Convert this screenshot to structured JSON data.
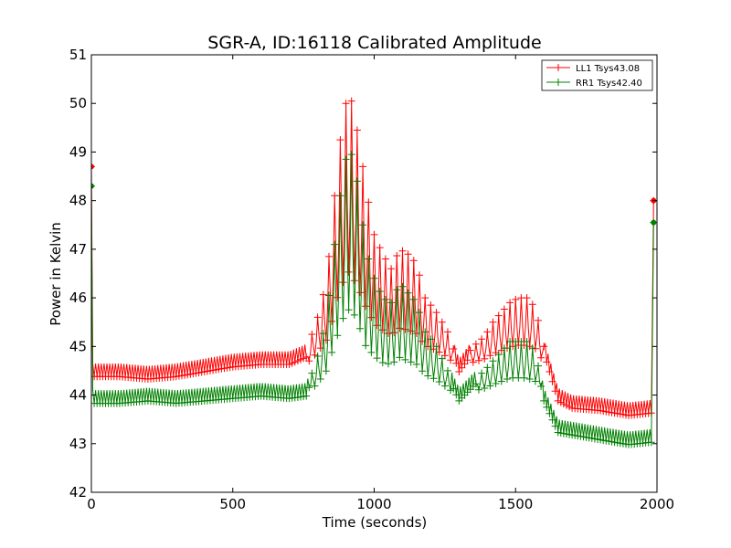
{
  "chart_data": {
    "type": "line",
    "title": "SGR-A, ID:16118 Calibrated Amplitude",
    "xlabel": "Time (seconds)",
    "ylabel": "Power in Kelvin",
    "xlim": [
      0,
      2000
    ],
    "ylim": [
      42,
      51
    ],
    "xticks": [
      "0",
      "500",
      "1000",
      "1500",
      "2000"
    ],
    "yticks": [
      "42",
      "43",
      "44",
      "45",
      "46",
      "47",
      "48",
      "49",
      "50",
      "51"
    ],
    "grid": false,
    "legend_position": "top-right",
    "series": [
      {
        "name": "LL1 Tsys43.08",
        "color": "#ff0000",
        "marker": "plus",
        "points": [
          {
            "x": 0,
            "y": 48.7
          },
          {
            "x": 5,
            "y": 44.5
          },
          {
            "x": 100,
            "y": 44.5
          },
          {
            "x": 200,
            "y": 44.45
          },
          {
            "x": 300,
            "y": 44.5
          },
          {
            "x": 400,
            "y": 44.6
          },
          {
            "x": 500,
            "y": 44.7
          },
          {
            "x": 600,
            "y": 44.75
          },
          {
            "x": 700,
            "y": 44.75
          },
          {
            "x": 760,
            "y": 44.9
          },
          {
            "x": 800,
            "y": 45.6
          },
          {
            "x": 830,
            "y": 46.3
          },
          {
            "x": 850,
            "y": 47.4
          },
          {
            "x": 870,
            "y": 48.8
          },
          {
            "x": 890,
            "y": 49.7
          },
          {
            "x": 910,
            "y": 50.3
          },
          {
            "x": 930,
            "y": 49.8
          },
          {
            "x": 950,
            "y": 49.1
          },
          {
            "x": 970,
            "y": 48.3
          },
          {
            "x": 1000,
            "y": 47.3
          },
          {
            "x": 1030,
            "y": 46.9
          },
          {
            "x": 1060,
            "y": 46.6
          },
          {
            "x": 1090,
            "y": 47.0
          },
          {
            "x": 1120,
            "y": 46.9
          },
          {
            "x": 1150,
            "y": 46.7
          },
          {
            "x": 1180,
            "y": 46.0
          },
          {
            "x": 1220,
            "y": 45.7
          },
          {
            "x": 1260,
            "y": 45.3
          },
          {
            "x": 1300,
            "y": 44.6
          },
          {
            "x": 1350,
            "y": 45.0
          },
          {
            "x": 1390,
            "y": 45.2
          },
          {
            "x": 1420,
            "y": 45.5
          },
          {
            "x": 1450,
            "y": 45.7
          },
          {
            "x": 1480,
            "y": 45.9
          },
          {
            "x": 1510,
            "y": 46.0
          },
          {
            "x": 1540,
            "y": 46.0
          },
          {
            "x": 1570,
            "y": 45.8
          },
          {
            "x": 1600,
            "y": 45.0
          },
          {
            "x": 1650,
            "y": 44.0
          },
          {
            "x": 1700,
            "y": 43.85
          },
          {
            "x": 1800,
            "y": 43.8
          },
          {
            "x": 1900,
            "y": 43.7
          },
          {
            "x": 1980,
            "y": 43.75
          },
          {
            "x": 1988,
            "y": 48.0
          }
        ]
      },
      {
        "name": "RR1 Tsys42.40",
        "color": "#008000",
        "marker": "plus",
        "points": [
          {
            "x": 0,
            "y": 48.3
          },
          {
            "x": 5,
            "y": 43.95
          },
          {
            "x": 100,
            "y": 43.95
          },
          {
            "x": 200,
            "y": 44.0
          },
          {
            "x": 300,
            "y": 43.95
          },
          {
            "x": 400,
            "y": 44.0
          },
          {
            "x": 500,
            "y": 44.05
          },
          {
            "x": 600,
            "y": 44.1
          },
          {
            "x": 700,
            "y": 44.05
          },
          {
            "x": 760,
            "y": 44.1
          },
          {
            "x": 800,
            "y": 44.8
          },
          {
            "x": 830,
            "y": 45.5
          },
          {
            "x": 850,
            "y": 46.6
          },
          {
            "x": 870,
            "y": 47.6
          },
          {
            "x": 890,
            "y": 48.6
          },
          {
            "x": 910,
            "y": 49.1
          },
          {
            "x": 930,
            "y": 48.8
          },
          {
            "x": 950,
            "y": 48.0
          },
          {
            "x": 970,
            "y": 47.0
          },
          {
            "x": 1000,
            "y": 46.4
          },
          {
            "x": 1030,
            "y": 46.0
          },
          {
            "x": 1060,
            "y": 45.9
          },
          {
            "x": 1090,
            "y": 46.3
          },
          {
            "x": 1120,
            "y": 46.1
          },
          {
            "x": 1150,
            "y": 45.9
          },
          {
            "x": 1180,
            "y": 45.3
          },
          {
            "x": 1220,
            "y": 45.0
          },
          {
            "x": 1260,
            "y": 44.5
          },
          {
            "x": 1300,
            "y": 44.0
          },
          {
            "x": 1350,
            "y": 44.3
          },
          {
            "x": 1390,
            "y": 44.5
          },
          {
            "x": 1420,
            "y": 44.7
          },
          {
            "x": 1450,
            "y": 44.9
          },
          {
            "x": 1480,
            "y": 45.1
          },
          {
            "x": 1510,
            "y": 45.1
          },
          {
            "x": 1540,
            "y": 45.1
          },
          {
            "x": 1570,
            "y": 44.9
          },
          {
            "x": 1600,
            "y": 44.0
          },
          {
            "x": 1650,
            "y": 43.35
          },
          {
            "x": 1700,
            "y": 43.3
          },
          {
            "x": 1800,
            "y": 43.2
          },
          {
            "x": 1900,
            "y": 43.1
          },
          {
            "x": 1980,
            "y": 43.15
          },
          {
            "x": 1988,
            "y": 47.55
          }
        ]
      }
    ]
  }
}
